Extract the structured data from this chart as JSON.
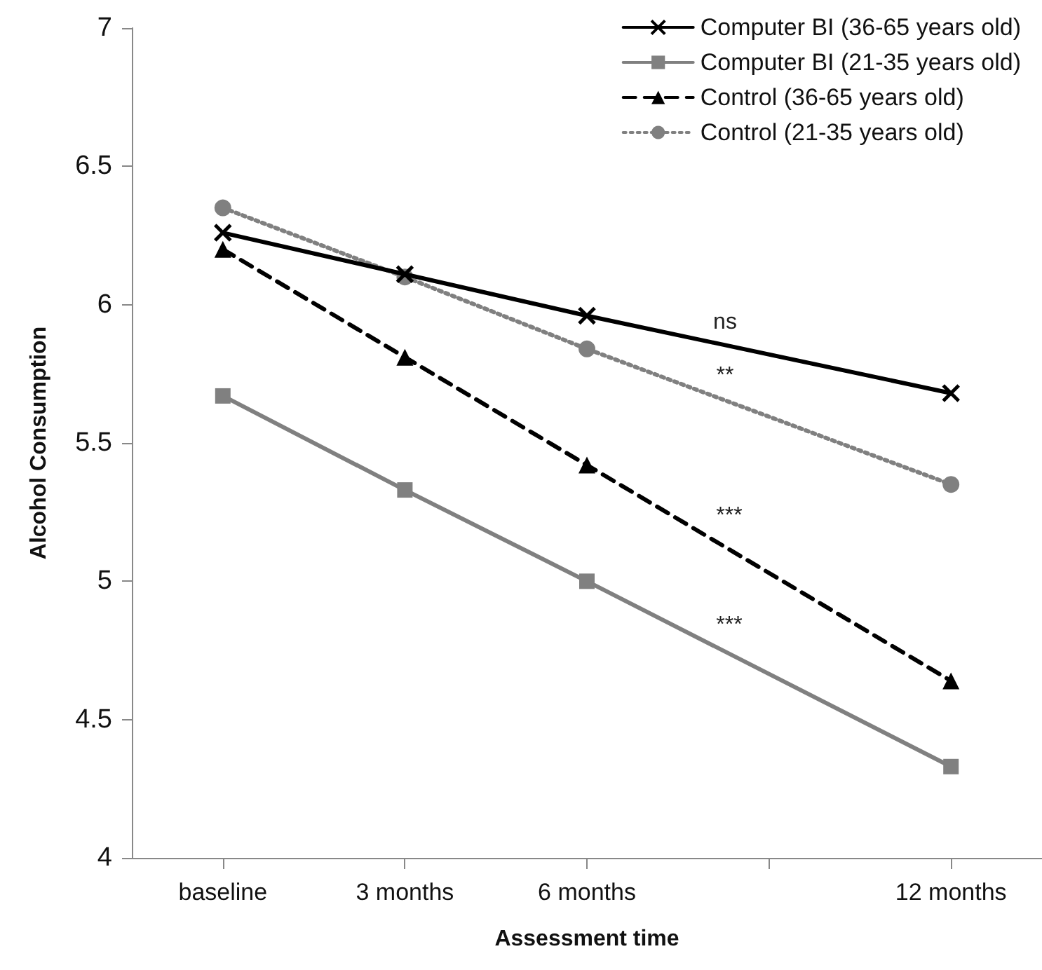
{
  "chart_data": {
    "type": "line",
    "xlabel": "Assessment time",
    "ylabel": "Alcohol Consumption",
    "categories": [
      "baseline",
      "3 months",
      "6 months",
      null,
      "12 months"
    ],
    "ylim": [
      4,
      7
    ],
    "yticks": [
      4,
      4.5,
      5,
      5.5,
      6,
      6.5,
      7
    ],
    "grid": false,
    "legend": "top right",
    "series": [
      {
        "name": "Computer BI (36-65 years old)",
        "color": "#000000",
        "marker": "cross",
        "line_style": "solid",
        "values": [
          6.26,
          6.11,
          5.96,
          null,
          5.68
        ]
      },
      {
        "name": "Computer BI (21-35 years old)",
        "color": "#808080",
        "marker": "square",
        "line_style": "solid",
        "values": [
          5.67,
          5.33,
          5.0,
          null,
          4.33
        ]
      },
      {
        "name": "Control (36-65 years old)",
        "color": "#000000",
        "marker": "triangle",
        "line_style": "dashed",
        "values": [
          6.2,
          5.81,
          5.42,
          null,
          4.64
        ]
      },
      {
        "name": "Control (21-35 years old)",
        "color": "#808080",
        "marker": "circle",
        "line_style": "dotted",
        "values": [
          6.35,
          6.1,
          5.84,
          null,
          5.35
        ]
      }
    ],
    "annotations": [
      "ns",
      "**",
      "***",
      "***"
    ]
  }
}
